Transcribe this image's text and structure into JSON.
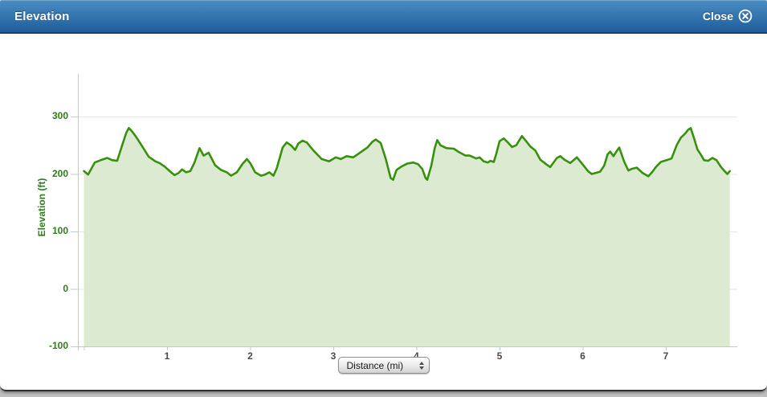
{
  "header": {
    "title": "Elevation",
    "close_label": "Close"
  },
  "controls": {
    "unit_select_label": "Distance (mi)"
  },
  "colors": {
    "header_gradient_top": "#4a8dc3",
    "header_gradient_bottom": "#1f5d9b",
    "header_border": "#16416f",
    "line": "#38910d",
    "fill": "#dcead2",
    "axis": "#b9c9d8",
    "grid": "#e5e5e5",
    "y_label_green": "#2e7d19",
    "x_label_gray": "#4a4a4a"
  },
  "chart_data": {
    "type": "area",
    "title": "Elevation",
    "xlabel": "Distance (mi)",
    "ylabel": "Elevation (ft)",
    "x_ticks": [
      1,
      2,
      3,
      4,
      5,
      6,
      7
    ],
    "y_ticks": [
      300,
      200,
      100,
      0,
      -100
    ],
    "xlim": [
      0,
      7.85
    ],
    "ylim": [
      -100,
      375
    ],
    "grid": true,
    "legend": "none",
    "series": [
      {
        "name": "Elevation (ft)",
        "points": [
          [
            0,
            205
          ],
          [
            0.05,
            199
          ],
          [
            0.13,
            220
          ],
          [
            0.22,
            225
          ],
          [
            0.28,
            228
          ],
          [
            0.34,
            224
          ],
          [
            0.4,
            223
          ],
          [
            0.46,
            250
          ],
          [
            0.51,
            272
          ],
          [
            0.54,
            280
          ],
          [
            0.58,
            274
          ],
          [
            0.63,
            264
          ],
          [
            0.71,
            246
          ],
          [
            0.78,
            230
          ],
          [
            0.86,
            222
          ],
          [
            0.91,
            219
          ],
          [
            0.97,
            213
          ],
          [
            1.04,
            204
          ],
          [
            1.09,
            198
          ],
          [
            1.14,
            202
          ],
          [
            1.18,
            208
          ],
          [
            1.23,
            203
          ],
          [
            1.28,
            205
          ],
          [
            1.33,
            220
          ],
          [
            1.39,
            245
          ],
          [
            1.44,
            232
          ],
          [
            1.5,
            237
          ],
          [
            1.58,
            215
          ],
          [
            1.65,
            207
          ],
          [
            1.72,
            203
          ],
          [
            1.77,
            197
          ],
          [
            1.84,
            203
          ],
          [
            1.91,
            218
          ],
          [
            1.96,
            226
          ],
          [
            2,
            219
          ],
          [
            2.06,
            203
          ],
          [
            2.13,
            197
          ],
          [
            2.18,
            199
          ],
          [
            2.23,
            203
          ],
          [
            2.28,
            197
          ],
          [
            2.32,
            210
          ],
          [
            2.39,
            246
          ],
          [
            2.44,
            255
          ],
          [
            2.49,
            250
          ],
          [
            2.54,
            242
          ],
          [
            2.58,
            253
          ],
          [
            2.63,
            258
          ],
          [
            2.68,
            255
          ],
          [
            2.76,
            241
          ],
          [
            2.86,
            226
          ],
          [
            2.95,
            222
          ],
          [
            3.03,
            229
          ],
          [
            3.09,
            226
          ],
          [
            3.16,
            231
          ],
          [
            3.24,
            229
          ],
          [
            3.31,
            236
          ],
          [
            3.41,
            246
          ],
          [
            3.47,
            256
          ],
          [
            3.51,
            260
          ],
          [
            3.57,
            254
          ],
          [
            3.63,
            227
          ],
          [
            3.69,
            193
          ],
          [
            3.72,
            190
          ],
          [
            3.76,
            207
          ],
          [
            3.82,
            213
          ],
          [
            3.89,
            218
          ],
          [
            3.96,
            220
          ],
          [
            4.02,
            217
          ],
          [
            4.07,
            209
          ],
          [
            4.11,
            193
          ],
          [
            4.13,
            190
          ],
          [
            4.18,
            215
          ],
          [
            4.22,
            245
          ],
          [
            4.25,
            259
          ],
          [
            4.29,
            250
          ],
          [
            4.36,
            245
          ],
          [
            4.45,
            244
          ],
          [
            4.5,
            239
          ],
          [
            4.59,
            232
          ],
          [
            4.64,
            232
          ],
          [
            4.72,
            227
          ],
          [
            4.76,
            229
          ],
          [
            4.81,
            222
          ],
          [
            4.86,
            220
          ],
          [
            4.89,
            223
          ],
          [
            4.93,
            221
          ],
          [
            4.96,
            235
          ],
          [
            5,
            257
          ],
          [
            5.05,
            262
          ],
          [
            5.1,
            255
          ],
          [
            5.15,
            247
          ],
          [
            5.2,
            250
          ],
          [
            5.27,
            266
          ],
          [
            5.32,
            257
          ],
          [
            5.37,
            248
          ],
          [
            5.43,
            241
          ],
          [
            5.49,
            225
          ],
          [
            5.56,
            217
          ],
          [
            5.61,
            212
          ],
          [
            5.69,
            228
          ],
          [
            5.73,
            231
          ],
          [
            5.78,
            225
          ],
          [
            5.85,
            219
          ],
          [
            5.93,
            229
          ],
          [
            6.01,
            215
          ],
          [
            6.07,
            204
          ],
          [
            6.11,
            200
          ],
          [
            6.16,
            202
          ],
          [
            6.21,
            204
          ],
          [
            6.26,
            215
          ],
          [
            6.3,
            234
          ],
          [
            6.33,
            239
          ],
          [
            6.37,
            231
          ],
          [
            6.41,
            240
          ],
          [
            6.44,
            246
          ],
          [
            6.5,
            221
          ],
          [
            6.55,
            206
          ],
          [
            6.59,
            209
          ],
          [
            6.65,
            211
          ],
          [
            6.72,
            202
          ],
          [
            6.79,
            196
          ],
          [
            6.84,
            204
          ],
          [
            6.88,
            212
          ],
          [
            6.94,
            221
          ],
          [
            7.01,
            224
          ],
          [
            7.07,
            227
          ],
          [
            7.13,
            250
          ],
          [
            7.18,
            263
          ],
          [
            7.23,
            270
          ],
          [
            7.27,
            277
          ],
          [
            7.3,
            280
          ],
          [
            7.34,
            262
          ],
          [
            7.38,
            243
          ],
          [
            7.42,
            234
          ],
          [
            7.46,
            224
          ],
          [
            7.51,
            223
          ],
          [
            7.56,
            228
          ],
          [
            7.61,
            224
          ],
          [
            7.66,
            213
          ],
          [
            7.7,
            206
          ],
          [
            7.74,
            200
          ],
          [
            7.77,
            205
          ]
        ]
      }
    ]
  }
}
